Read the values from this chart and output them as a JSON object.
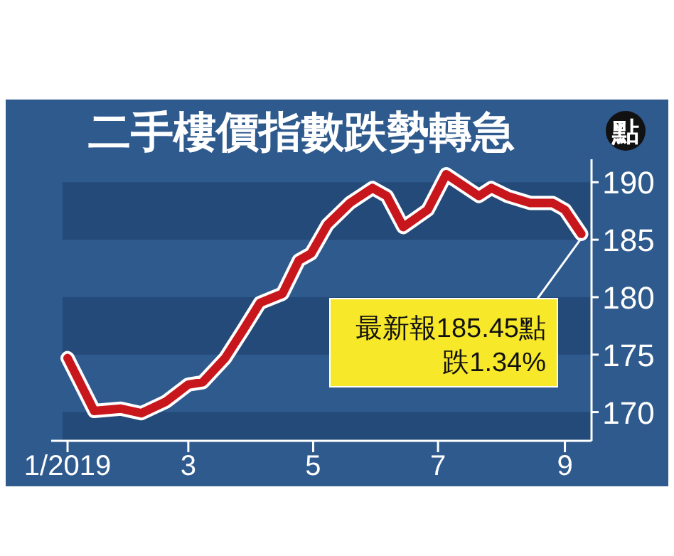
{
  "chart_data": {
    "type": "line",
    "title": "二手樓價指數跌勢轉急",
    "ylabel": "點",
    "x": [
      "2019-01-01",
      "2019-01-14",
      "2019-01-27",
      "2019-02-06",
      "2019-02-18",
      "2019-03-01",
      "2019-03-08",
      "2019-03-19",
      "2019-03-28",
      "2019-04-05",
      "2019-04-16",
      "2019-04-24",
      "2019-04-30",
      "2019-05-08",
      "2019-05-19",
      "2019-05-30",
      "2019-06-06",
      "2019-06-14",
      "2019-06-26",
      "2019-07-05",
      "2019-07-21",
      "2019-07-27",
      "2019-08-04",
      "2019-08-15",
      "2019-08-26",
      "2019-09-01",
      "2019-09-09"
    ],
    "series": [
      {
        "color": "#c8161d",
        "values": [
          174.7,
          170.1,
          170.3,
          169.9,
          170.9,
          172.4,
          172.6,
          174.7,
          177.2,
          179.5,
          180.3,
          183.2,
          183.8,
          186.3,
          188.2,
          189.5,
          188.8,
          186.1,
          187.6,
          190.7,
          188.8,
          189.5,
          188.8,
          188.2,
          188.2,
          187.6,
          185.5
        ]
      }
    ],
    "xlim": [
      "2018-12-24",
      "2019-09-14"
    ],
    "xticks": [
      {
        "value": "2019-01-01",
        "label": "1/2019"
      },
      {
        "value": "2019-03-01",
        "label": "3"
      },
      {
        "value": "2019-05-01",
        "label": "5"
      },
      {
        "value": "2019-07-01",
        "label": "7"
      },
      {
        "value": "2019-09-01",
        "label": "9"
      }
    ],
    "ylim": [
      167.5,
      192
    ],
    "yticks": [
      170,
      175,
      180,
      185,
      190
    ],
    "bands": [
      {
        "axis": "y",
        "from": 167.5,
        "to": 170,
        "color": "#234a78"
      },
      {
        "axis": "y",
        "from": 175,
        "to": 180,
        "color": "#234a78"
      },
      {
        "axis": "y",
        "from": 185,
        "to": 190,
        "color": "#234a78"
      }
    ],
    "marker": "none",
    "line_style": "solid",
    "annotations": [
      {
        "text": "最新報185.45點",
        "x": "2019-09-09",
        "y": 185.5
      },
      "跌1.34%"
    ]
  }
}
